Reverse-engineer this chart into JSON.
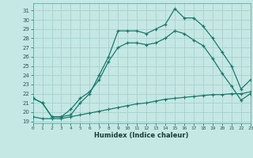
{
  "xlabel": "Humidex (Indice chaleur)",
  "bg_color": "#c5e8e5",
  "grid_color": "#aad4d0",
  "line_color": "#1a7a6a",
  "curve1_x": [
    0,
    1,
    2,
    3,
    4,
    5,
    6,
    7,
    8,
    9,
    10,
    11,
    12,
    13,
    14,
    15,
    16,
    17,
    18,
    19,
    20,
    21,
    22,
    23
  ],
  "curve1_y": [
    21.5,
    21.0,
    19.5,
    19.5,
    19.7,
    21.0,
    22.0,
    24.0,
    26.0,
    28.8,
    28.8,
    28.8,
    28.5,
    29.0,
    29.5,
    31.2,
    30.2,
    30.2,
    29.3,
    28.0,
    26.5,
    25.0,
    22.5,
    23.5
  ],
  "curve2_x": [
    0,
    1,
    2,
    3,
    4,
    5,
    6,
    7,
    8,
    9,
    10,
    11,
    12,
    13,
    14,
    15,
    16,
    17,
    18,
    19,
    20,
    21,
    22,
    23
  ],
  "curve2_y": [
    21.5,
    21.0,
    19.5,
    19.5,
    20.3,
    21.5,
    22.2,
    23.5,
    25.5,
    27.0,
    27.5,
    27.5,
    27.3,
    27.5,
    28.0,
    28.8,
    28.5,
    27.8,
    27.2,
    25.8,
    24.2,
    22.8,
    21.3,
    22.0
  ],
  "curve3_x": [
    0,
    1,
    2,
    3,
    4,
    5,
    6,
    7,
    8,
    9,
    10,
    11,
    12,
    13,
    14,
    15,
    16,
    17,
    18,
    19,
    20,
    21,
    22,
    23
  ],
  "curve3_y": [
    19.5,
    19.3,
    19.3,
    19.3,
    19.5,
    19.7,
    19.9,
    20.1,
    20.3,
    20.5,
    20.7,
    20.9,
    21.0,
    21.2,
    21.4,
    21.5,
    21.6,
    21.7,
    21.8,
    21.9,
    21.9,
    22.0,
    22.0,
    22.2
  ],
  "xlim": [
    0,
    23
  ],
  "ylim": [
    18.8,
    31.8
  ],
  "yticks": [
    19,
    20,
    21,
    22,
    23,
    24,
    25,
    26,
    27,
    28,
    29,
    30,
    31
  ],
  "xticks": [
    0,
    1,
    2,
    3,
    4,
    5,
    6,
    7,
    8,
    9,
    10,
    11,
    12,
    13,
    14,
    15,
    16,
    17,
    18,
    19,
    20,
    21,
    22,
    23
  ]
}
